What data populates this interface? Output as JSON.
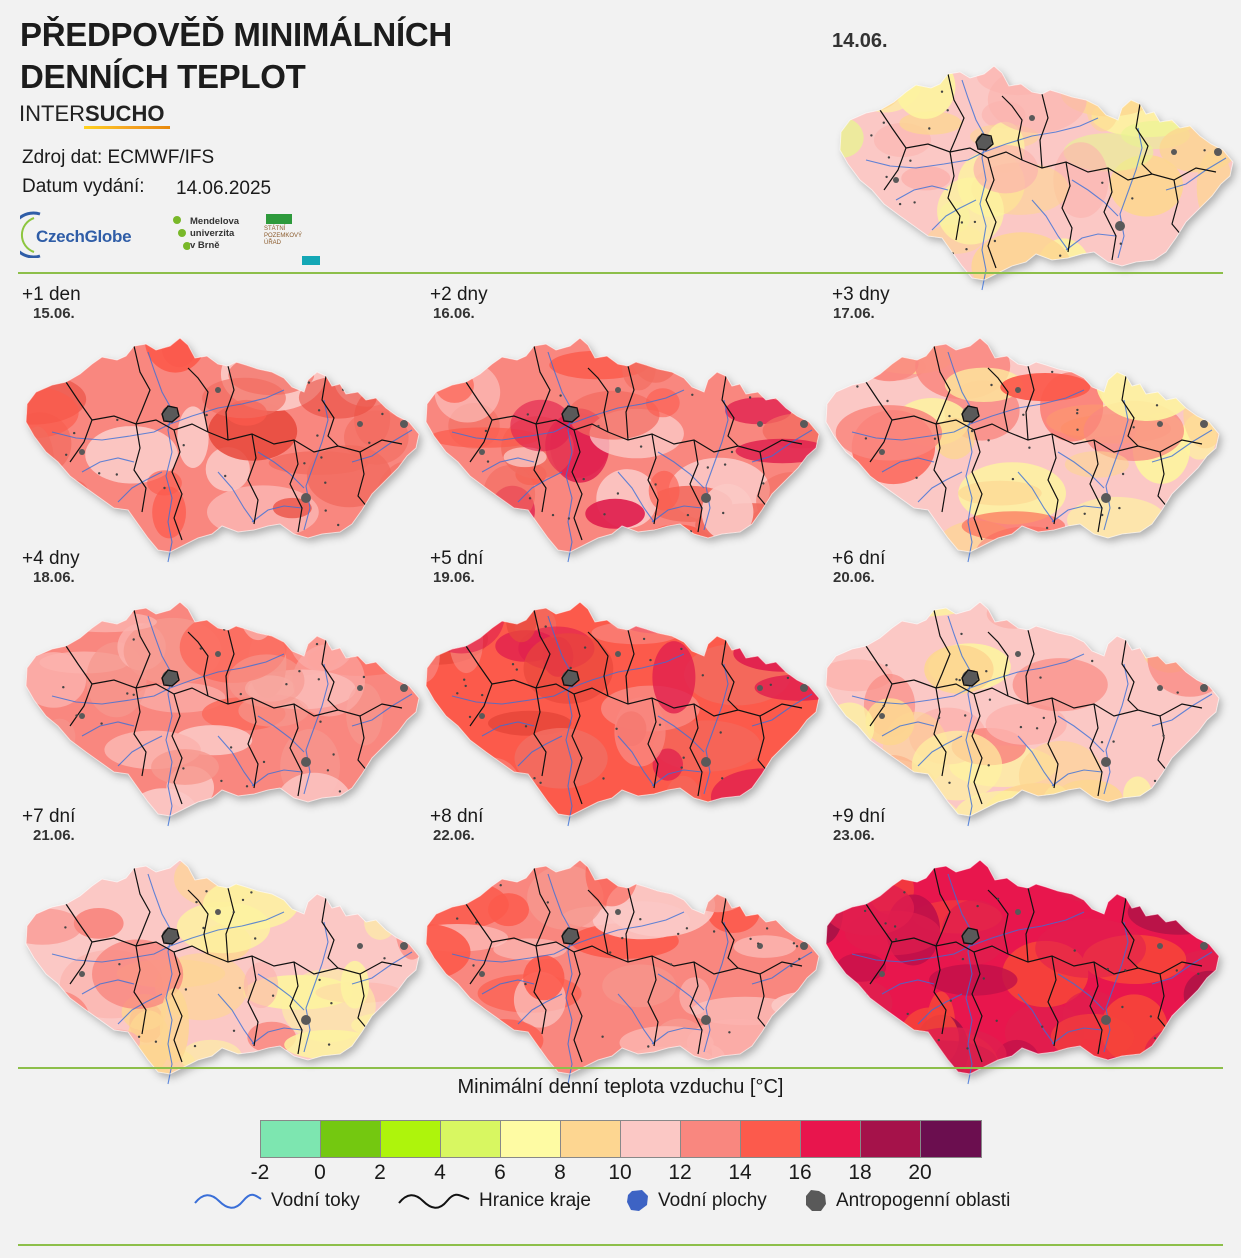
{
  "title": {
    "line1": "PŘEDPOVĚĎ MINIMÁLNÍCH",
    "line2": "DENNÍCH TEPLOT"
  },
  "brand": {
    "part1": "INTER",
    "part2": "SUCHO"
  },
  "source_text": "Zdroj dat: ECMWF/IFS",
  "issue_label": "Datum vydání:",
  "issue_date": "14.06.2025",
  "logos": {
    "czechglobe": "CzechGlobe",
    "mendelu": [
      "Mendelova",
      "univerzita",
      "v Brně"
    ],
    "spu": [
      "STÁTNÍ",
      "POZEMKOVÝ",
      "ÚŘAD"
    ]
  },
  "current": {
    "date": "14.06.",
    "colors": [
      "#fbc8c5",
      "#fdd691",
      "#fdf3a0",
      "#fbb3ae",
      "#e8f590"
    ]
  },
  "panels": [
    {
      "offset": "+1 den",
      "date": "15.06.",
      "colors": [
        "#f9877f",
        "#fc5a4c",
        "#fbc8c5",
        "#f26b5f",
        "#e8483b"
      ]
    },
    {
      "offset": "+2 dny",
      "date": "16.06.",
      "colors": [
        "#f9877f",
        "#fbc8c5",
        "#fc5a4c",
        "#f26b5f",
        "#e01f4e"
      ]
    },
    {
      "offset": "+3 dny",
      "date": "17.06.",
      "colors": [
        "#fbc8c5",
        "#fdd691",
        "#fdf3a0",
        "#f9877f",
        "#fc5a4c"
      ]
    },
    {
      "offset": "+4 dny",
      "date": "18.06.",
      "colors": [
        "#f9877f",
        "#fbc8c5",
        "#f6988f",
        "#fc6b5d",
        "#fbb3ae"
      ]
    },
    {
      "offset": "+5 dní",
      "date": "19.06.",
      "colors": [
        "#fc5a4c",
        "#f26b5f",
        "#f9877f",
        "#e8483b",
        "#e01f4e"
      ]
    },
    {
      "offset": "+6 dní",
      "date": "20.06.",
      "colors": [
        "#fbc8c5",
        "#fdd691",
        "#fdf3a0",
        "#fbb3ae",
        "#f9877f"
      ]
    },
    {
      "offset": "+7 dní",
      "date": "21.06.",
      "colors": [
        "#fbc8c5",
        "#f9877f",
        "#fdd691",
        "#fbb3ae",
        "#fdf3a0"
      ]
    },
    {
      "offset": "+8 dní",
      "date": "22.06.",
      "colors": [
        "#f9877f",
        "#fbc8c5",
        "#fc5a4c",
        "#f6988f",
        "#fbb3ae"
      ]
    },
    {
      "offset": "+9 dní",
      "date": "23.06.",
      "colors": [
        "#e8154d",
        "#f5433a",
        "#c0104a",
        "#9e1245",
        "#e01f4e"
      ]
    }
  ],
  "legend": {
    "title": "Minimální denní teplota vzduchu [°C]",
    "colors": [
      "#7de6b0",
      "#74c810",
      "#aef40c",
      "#d8f761",
      "#fefba3",
      "#fdd691",
      "#fbc8c5",
      "#f9877f",
      "#fc5a4c",
      "#e8154d",
      "#a5124a",
      "#6b0e4f"
    ],
    "ticks": [
      "-2",
      "0",
      "2",
      "4",
      "6",
      "8",
      "10",
      "12",
      "14",
      "16",
      "18",
      "20"
    ],
    "items": [
      {
        "label": "Vodní toky"
      },
      {
        "label": "Hranice kraje"
      },
      {
        "label": "Vodní plochy"
      },
      {
        "label": "Antropogenní oblasti"
      }
    ],
    "river_color": "#3a6fd8",
    "lake_color": "#3d63c4",
    "urban_color": "#595959"
  }
}
